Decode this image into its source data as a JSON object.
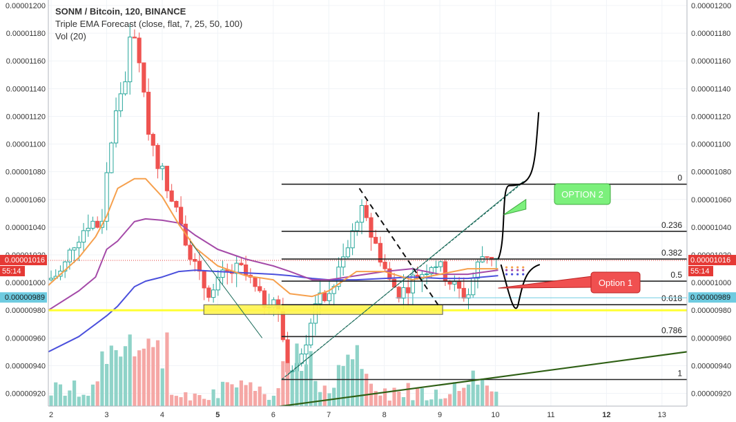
{
  "header": {
    "title": "SONM / Bitcoin, 120, BINANCE",
    "indicator": "Triple EMA Forecast (close, flat, 7, 25, 50, 100)",
    "volume": "Vol (20)"
  },
  "colors": {
    "up": "#26a69a",
    "down": "#ef5350",
    "vol_up": "#8fd3c8",
    "vol_down": "#f5a7a5",
    "ema7": "#f6a04d",
    "ema25": "#a44aa8",
    "ema50": "#4a4fdc",
    "yellow": "#ffff33",
    "label_current": "#e53935",
    "label_level": "#6ecbe0"
  },
  "chart_data": {
    "type": "candlestick",
    "symbol": "SONM / Bitcoin",
    "timeframe": "120",
    "exchange": "BINANCE",
    "y_axis": {
      "range": [
        9.108e-06,
        1.204e-05
      ],
      "ticks": [
        "0.00000920",
        "0.00000940",
        "0.00000960",
        "0.00000980",
        "0.00001000",
        "0.00001020",
        "0.00001040",
        "0.00001060",
        "0.00001080",
        "0.00001100",
        "0.00001120",
        "0.00001140",
        "0.00001160",
        "0.00001180",
        "0.00001200"
      ]
    },
    "x_axis": {
      "range": [
        1.95,
        13.45
      ],
      "ticks": [
        {
          "day": 2,
          "label": "2"
        },
        {
          "day": 3,
          "label": "3"
        },
        {
          "day": 4,
          "label": "4"
        },
        {
          "day": 5,
          "label": "5"
        },
        {
          "day": 6,
          "label": "6"
        },
        {
          "day": 7,
          "label": "7"
        },
        {
          "day": 8,
          "label": "8"
        },
        {
          "day": 9,
          "label": "9"
        },
        {
          "day": 10,
          "label": "10"
        },
        {
          "day": 11,
          "label": "11"
        },
        {
          "day": 12,
          "label": "12"
        },
        {
          "day": 13,
          "label": "13"
        }
      ]
    },
    "price_labels": {
      "current": {
        "price": "0.00001016",
        "value": 1.016e-05,
        "countdown": "55:14"
      },
      "level": {
        "price": "0.00000989",
        "value": 9.89e-06
      }
    },
    "fib": {
      "x_range": [
        6.15,
        13.45
      ],
      "levels": [
        {
          "label": "0",
          "price": 1.071e-05
        },
        {
          "label": "0.236",
          "price": 1.037e-05
        },
        {
          "label": "0.382",
          "price": 1.017e-05
        },
        {
          "label": "0.5",
          "price": 1.001e-05
        },
        {
          "label": "0.618",
          "price": 9.84e-06
        },
        {
          "label": "0.786",
          "price": 9.61e-06
        },
        {
          "label": "1",
          "price": 9.3e-06
        }
      ]
    },
    "support_line": {
      "price": 9.8e-06
    },
    "support_box": {
      "x": [
        4.75,
        9.05
      ],
      "price": [
        9.84e-06,
        9.77e-06
      ]
    },
    "annotations": [
      {
        "text": "OPTION 2",
        "x": 10.2,
        "y": 1.05e-05
      },
      {
        "text": "Option 1",
        "x": 9.8,
        "y": 9.99e-06
      }
    ],
    "trendline_green": {
      "x": [
        6.0,
        13.45
      ],
      "y": [
        9.1e-06,
        9.5e-06
      ]
    },
    "ema7": {
      "x": [
        1.95,
        2.5,
        2.8,
        3.0,
        3.2,
        3.5,
        3.7,
        4.0,
        4.3,
        4.6,
        5.0,
        5.5,
        6.0,
        6.3,
        6.7,
        7.0,
        7.5,
        8.0,
        8.5,
        9.0,
        9.5,
        10.05
      ],
      "y": [
        9.98e-06,
        1.018e-05,
        1.033e-05,
        1.048e-05,
        1.068e-05,
        1.075e-05,
        1.075e-05,
        1.062e-05,
        1.042e-05,
        1.025e-05,
        1.012e-05,
        1.005e-05,
        1.002e-05,
        9.92e-06,
        9.9e-06,
        9.94e-06,
        1.008e-05,
        1.008e-05,
        1.002e-05,
        1.006e-05,
        1.01e-05,
        1.01e-05
      ]
    },
    "ema25": {
      "x": [
        1.95,
        2.5,
        2.8,
        3.0,
        3.2,
        3.5,
        3.7,
        4.0,
        4.3,
        4.6,
        5.0,
        5.5,
        6.0,
        6.3,
        6.7,
        7.0,
        7.5,
        8.0,
        8.5,
        9.0,
        9.5,
        10.05
      ],
      "y": [
        9.8e-06,
        9.94e-06,
        1.004e-05,
        1.024e-05,
        1.03e-05,
        1.044e-05,
        1.046e-05,
        1.045e-05,
        1.043e-05,
        1.034e-05,
        1.024e-05,
        1.017e-05,
        1.012e-05,
        1.008e-05,
        1.002e-05,
        1.002e-05,
        1.005e-05,
        1.008e-05,
        1.01e-05,
        1.006e-05,
        1.006e-05,
        1.009e-05
      ]
    },
    "ema50": {
      "x": [
        1.95,
        2.5,
        2.8,
        3.0,
        3.2,
        3.5,
        3.7,
        4.0,
        4.3,
        4.6,
        5.0,
        5.5,
        6.0,
        6.3,
        6.7,
        7.0,
        7.5,
        8.0,
        8.5,
        9.0,
        9.5,
        10.05
      ],
      "y": [
        9.5e-06,
        9.61e-06,
        9.7e-06,
        9.76e-06,
        9.83e-06,
        9.97e-06,
        1.001e-05,
        1.004e-05,
        1.008e-05,
        1.009e-05,
        1.008e-05,
        1.007e-05,
        1.006e-05,
        1.005e-05,
        1.003e-05,
        1.002e-05,
        1.002e-05,
        1.003e-05,
        1.004e-05,
        1.003e-05,
        1.003e-05,
        1.005e-05
      ]
    },
    "forecast_dots": {
      "x": [
        10.2,
        10.3,
        10.4,
        10.5
      ],
      "ema7": 1.011e-05,
      "ema25": 1.009e-05,
      "ema50": 1.006e-05
    },
    "candles_sample": [
      {
        "x": 3.45,
        "o": 1.11e-05,
        "h": 1.196e-05,
        "l": 1.09e-05,
        "c": 1.183e-05
      },
      {
        "x": 6.2,
        "o": 9.6e-06,
        "h": 9.7e-06,
        "l": 9.25e-06,
        "c": 9.3e-06
      },
      {
        "x": 7.5,
        "o": 1.06e-05,
        "h": 1.08e-05,
        "l": 1.02e-05,
        "c": 1.04e-05
      },
      {
        "x": 9.7,
        "o": 1.03e-05,
        "h": 1.04e-05,
        "l": 9.9e-06,
        "c": 1.022e-05
      }
    ]
  }
}
